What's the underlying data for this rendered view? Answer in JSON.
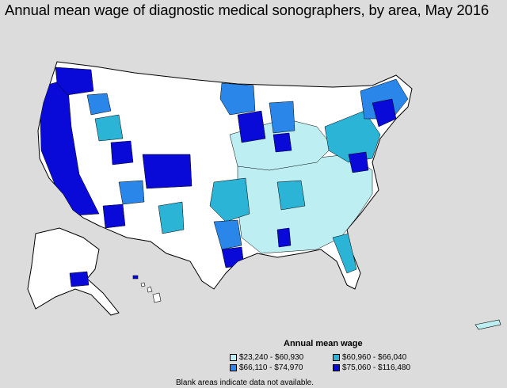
{
  "title": "Annual mean wage of diagnostic medical sonographers, by area, May 2016",
  "legend": {
    "title": "Annual mean wage",
    "items": [
      {
        "label": "$23,240 - $60,930",
        "color": "#bdeef2"
      },
      {
        "label": "$60,960 - $66,040",
        "color": "#2bb4d6"
      },
      {
        "label": "$66,110 - $74,970",
        "color": "#2a86e8"
      },
      {
        "label": "$75,060 - $116,480",
        "color": "#0a0ad8"
      }
    ]
  },
  "footnote": "Blank areas indicate data not available.",
  "colors": {
    "background": "#dcdcdc",
    "no_data": "#ffffff",
    "border": "#000000"
  }
}
